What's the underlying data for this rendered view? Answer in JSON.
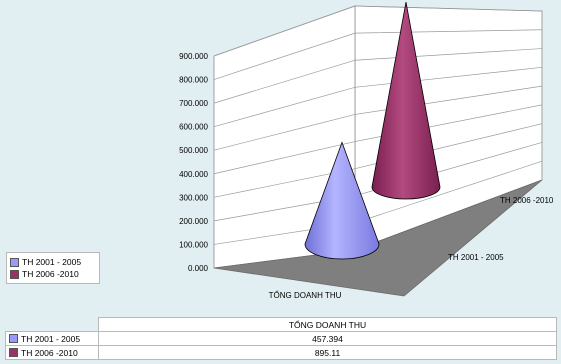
{
  "chart_data": {
    "type": "bar",
    "style": "3d-cone",
    "categories": [
      "TỔNG DOANH THU"
    ],
    "series": [
      {
        "name": "TH 2001 - 2005",
        "values": [
          457.394
        ],
        "color": "#9999ff"
      },
      {
        "name": "TH 2006 -2010",
        "values": [
          895.11
        ],
        "color": "#993366"
      }
    ],
    "y_ticks": [
      "0.000",
      "100.000",
      "200.000",
      "300.000",
      "400.000",
      "500.000",
      "600.000",
      "700.000",
      "800.000",
      "900.000"
    ],
    "ylim": [
      0,
      900
    ],
    "depth_labels": [
      "TH 2001 - 2005",
      "TH 2006 -2010"
    ],
    "xlabel": "TỔNG DOANH THU",
    "grid": true,
    "legend_position": "left"
  },
  "table": {
    "header": "TỔNG DOANH THU",
    "rows": [
      {
        "label": "TH 2001 - 2005",
        "value": "457.394",
        "color": "#9999ff"
      },
      {
        "label": "TH 2006 -2010",
        "value": "895.11",
        "color": "#993366"
      }
    ]
  }
}
